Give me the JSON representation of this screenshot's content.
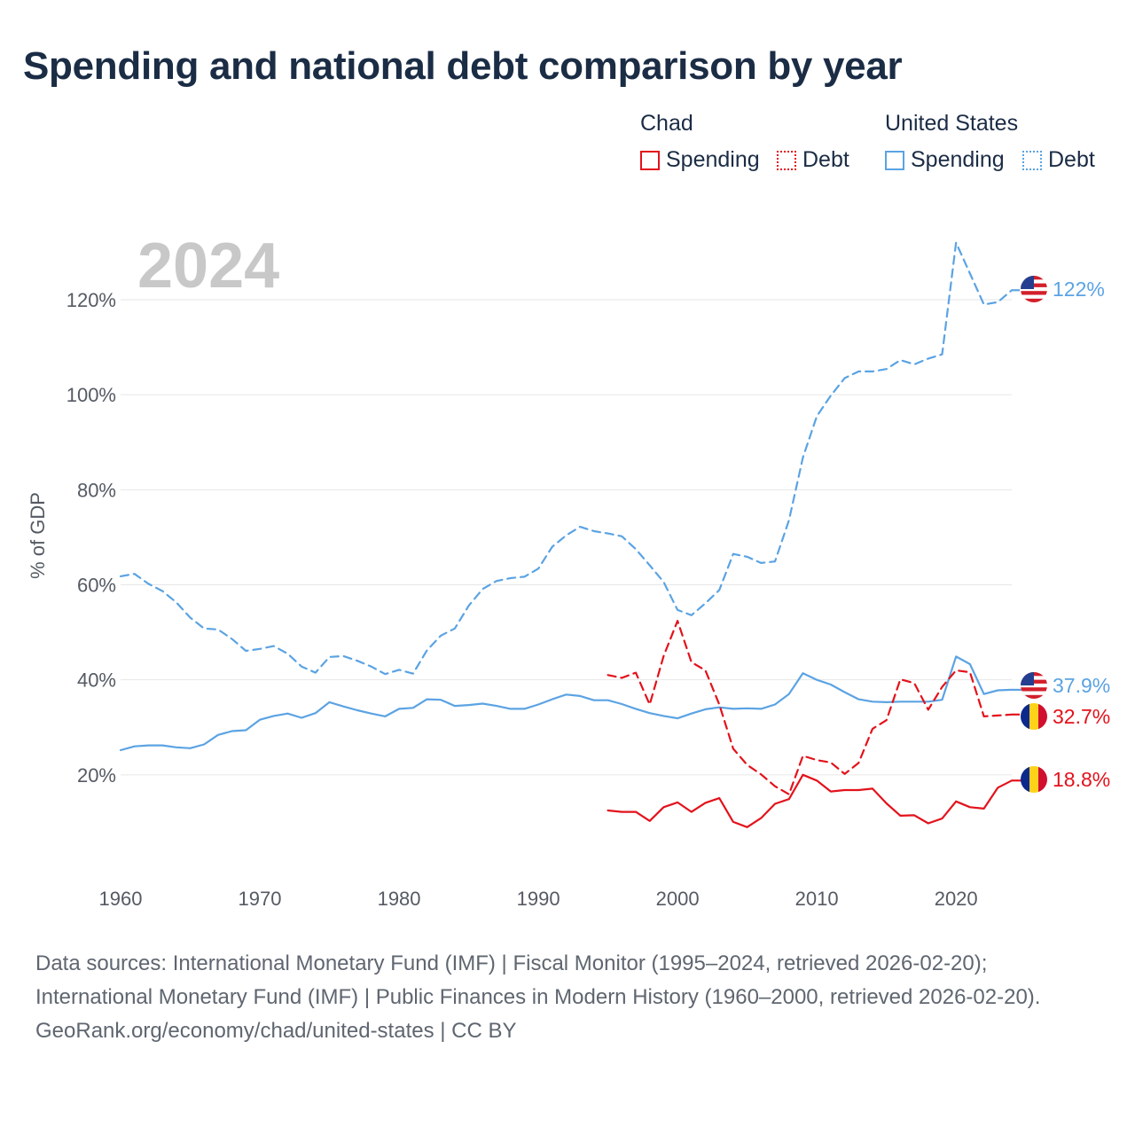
{
  "title": "Spending and national debt comparison by year",
  "year_label": "2024",
  "legend": {
    "groups": [
      {
        "name": "Chad",
        "color": "#e3121b",
        "items": [
          {
            "label": "Spending",
            "style": "solid"
          },
          {
            "label": "Debt",
            "style": "dotted"
          }
        ]
      },
      {
        "name": "United States",
        "color": "#5ba3e3",
        "items": [
          {
            "label": "Spending",
            "style": "solid"
          },
          {
            "label": "Debt",
            "style": "dotted"
          }
        ]
      }
    ]
  },
  "footer": {
    "sources": "Data sources: International Monetary Fund (IMF) | Fiscal Monitor (1995–2024, retrieved 2026-02-20); International Monetary Fund (IMF) | Public Finances in Modern History (1960–2000, retrieved 2026-02-20).",
    "credit": "GeoRank.org/economy/chad/united-states | CC BY"
  },
  "chart_data": {
    "type": "line",
    "title": "Spending and national debt comparison by year",
    "xlabel": "",
    "ylabel": "% of GDP",
    "xlim": [
      1960,
      2024
    ],
    "ylim": [
      0,
      130
    ],
    "x_ticks": [
      1960,
      1970,
      1980,
      1990,
      2000,
      2010,
      2020
    ],
    "x_tick_labels": [
      "1960",
      "1970",
      "1980",
      "1990",
      "2000",
      "2010",
      "2020"
    ],
    "y_ticks": [
      20,
      40,
      60,
      80,
      100,
      120
    ],
    "y_tick_labels": [
      "20%",
      "40%",
      "60%",
      "80%",
      "100%",
      "120%"
    ],
    "grid": true,
    "legend_position": "top-right",
    "series": [
      {
        "name": "United States Debt",
        "country": "United States",
        "metric": "Debt",
        "color": "#5ba3e3",
        "dash": true,
        "end_label": "122%",
        "x": [
          1960,
          1961,
          1962,
          1963,
          1964,
          1965,
          1966,
          1967,
          1968,
          1969,
          1970,
          1971,
          1972,
          1973,
          1974,
          1975,
          1976,
          1977,
          1978,
          1979,
          1980,
          1981,
          1982,
          1983,
          1984,
          1985,
          1986,
          1987,
          1988,
          1989,
          1990,
          1991,
          1992,
          1993,
          1994,
          1995,
          1996,
          1997,
          1998,
          1999,
          2000,
          2001,
          2002,
          2003,
          2004,
          2005,
          2006,
          2007,
          2008,
          2009,
          2010,
          2011,
          2012,
          2013,
          2014,
          2015,
          2016,
          2017,
          2018,
          2019,
          2020,
          2021,
          2022,
          2023,
          2024
        ],
        "values": [
          61.8,
          62.3,
          60.2,
          58.7,
          56.3,
          53.1,
          50.8,
          50.6,
          48.6,
          46.1,
          46.5,
          47.1,
          45.5,
          42.8,
          41.5,
          44.8,
          45.0,
          44.0,
          42.8,
          41.2,
          42.1,
          41.3,
          46.2,
          49.3,
          50.8,
          55.6,
          59.1,
          60.8,
          61.4,
          61.7,
          63.4,
          68.0,
          70.4,
          72.2,
          71.3,
          70.8,
          70.2,
          67.5,
          64.1,
          60.6,
          54.7,
          53.6,
          56.1,
          58.9,
          66.5,
          65.9,
          64.6,
          64.9,
          73.6,
          86.8,
          95.5,
          99.8,
          103.5,
          104.9,
          104.9,
          105.4,
          107.3,
          106.4,
          107.6,
          108.5,
          132.0,
          125.5,
          119.0,
          119.5,
          122.0
        ]
      },
      {
        "name": "United States Spending",
        "country": "United States",
        "metric": "Spending",
        "color": "#5ba3e3",
        "dash": false,
        "end_label": "37.9%",
        "x": [
          1960,
          1961,
          1962,
          1963,
          1964,
          1965,
          1966,
          1967,
          1968,
          1969,
          1970,
          1971,
          1972,
          1973,
          1974,
          1975,
          1976,
          1977,
          1978,
          1979,
          1980,
          1981,
          1982,
          1983,
          1984,
          1985,
          1986,
          1987,
          1988,
          1989,
          1990,
          1991,
          1992,
          1993,
          1994,
          1995,
          1996,
          1997,
          1998,
          1999,
          2000,
          2001,
          2002,
          2003,
          2004,
          2005,
          2006,
          2007,
          2008,
          2009,
          2010,
          2011,
          2012,
          2013,
          2014,
          2015,
          2016,
          2017,
          2018,
          2019,
          2020,
          2021,
          2022,
          2023,
          2024
        ],
        "values": [
          25.2,
          26.0,
          26.2,
          26.2,
          25.8,
          25.6,
          26.4,
          28.4,
          29.2,
          29.4,
          31.6,
          32.4,
          32.9,
          32.0,
          33.0,
          35.3,
          34.4,
          33.6,
          32.9,
          32.3,
          33.9,
          34.1,
          35.9,
          35.8,
          34.5,
          34.7,
          35.0,
          34.5,
          33.9,
          33.9,
          34.8,
          35.9,
          36.9,
          36.6,
          35.7,
          35.7,
          34.9,
          33.9,
          33.0,
          32.4,
          31.9,
          32.9,
          33.8,
          34.2,
          33.9,
          34.0,
          33.9,
          34.8,
          37.0,
          41.4,
          40.0,
          39.0,
          37.4,
          35.9,
          35.4,
          35.3,
          35.4,
          35.4,
          35.4,
          35.8,
          44.9,
          43.3,
          37.0,
          37.8,
          37.9
        ]
      },
      {
        "name": "Chad Debt",
        "country": "Chad",
        "metric": "Debt",
        "color": "#e3121b",
        "dash": true,
        "end_label": "32.7%",
        "x": [
          1995,
          1996,
          1997,
          1998,
          1999,
          2000,
          2001,
          2002,
          2003,
          2004,
          2005,
          2006,
          2007,
          2008,
          2009,
          2010,
          2011,
          2012,
          2013,
          2014,
          2015,
          2016,
          2017,
          2018,
          2019,
          2020,
          2021,
          2022,
          2023,
          2024
        ],
        "values": [
          41.0,
          40.4,
          41.5,
          34.8,
          45.0,
          52.4,
          43.7,
          42.0,
          34.8,
          25.5,
          22.1,
          20.1,
          17.6,
          15.9,
          24.0,
          23.1,
          22.6,
          20.2,
          22.5,
          29.7,
          31.5,
          40.1,
          39.3,
          33.7,
          38.5,
          42.0,
          41.6,
          32.3,
          32.5,
          32.7
        ]
      },
      {
        "name": "Chad Spending",
        "country": "Chad",
        "metric": "Spending",
        "color": "#e3121b",
        "dash": false,
        "end_label": "18.8%",
        "x": [
          1995,
          1996,
          1997,
          1998,
          1999,
          2000,
          2001,
          2002,
          2003,
          2004,
          2005,
          2006,
          2007,
          2008,
          2009,
          2010,
          2011,
          2012,
          2013,
          2014,
          2015,
          2016,
          2017,
          2018,
          2019,
          2020,
          2021,
          2022,
          2023,
          2024
        ],
        "values": [
          12.5,
          12.2,
          12.2,
          10.3,
          13.2,
          14.2,
          12.2,
          14.1,
          15.1,
          10.1,
          9.0,
          10.9,
          13.9,
          14.9,
          20.0,
          18.8,
          16.5,
          16.8,
          16.8,
          17.1,
          14.0,
          11.4,
          11.5,
          9.8,
          10.8,
          14.4,
          13.2,
          12.9,
          17.3,
          18.8
        ]
      }
    ]
  }
}
